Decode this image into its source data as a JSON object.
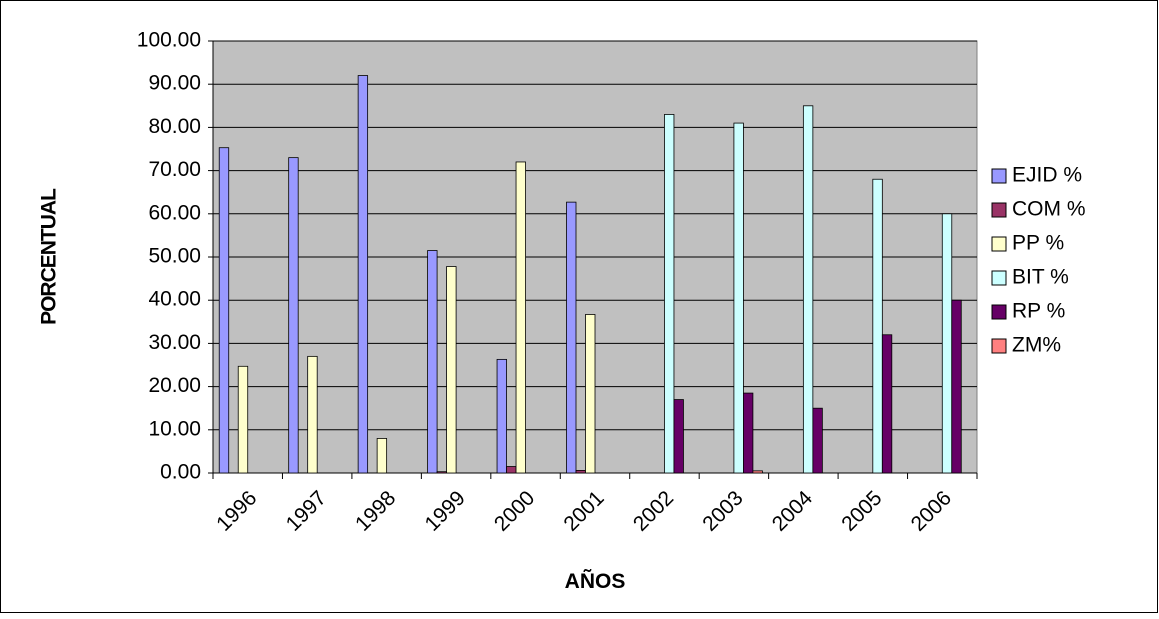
{
  "chart_data": {
    "type": "bar",
    "ylabel": "PORCENTUAL",
    "xlabel": "AÑOS",
    "categories": [
      "1996",
      "1997",
      "1998",
      "1999",
      "2000",
      "2001",
      "2002",
      "2003",
      "2004",
      "2005",
      "2006"
    ],
    "series": [
      {
        "name": "EJID %",
        "color": "#9999ff",
        "values": [
          75.3,
          73,
          92,
          51.5,
          26.3,
          62.7,
          null,
          null,
          null,
          null,
          null
        ]
      },
      {
        "name": "COM %",
        "color": "#993366",
        "values": [
          null,
          null,
          null,
          0.3,
          1.5,
          0.6,
          null,
          null,
          null,
          null,
          null
        ]
      },
      {
        "name": "PP %",
        "color": "#ffffcc",
        "values": [
          24.7,
          27,
          8,
          47.8,
          72,
          36.7,
          null,
          null,
          null,
          null,
          null
        ]
      },
      {
        "name": "BIT %",
        "color": "#ccffff",
        "values": [
          null,
          null,
          null,
          null,
          null,
          null,
          83,
          81,
          85,
          68,
          60
        ]
      },
      {
        "name": "RP %",
        "color": "#660066",
        "values": [
          null,
          null,
          null,
          null,
          null,
          null,
          17,
          18.5,
          15,
          32,
          40
        ]
      },
      {
        "name": "ZM%",
        "color": "#ff8080",
        "values": [
          null,
          null,
          null,
          null,
          null,
          null,
          null,
          0.5,
          null,
          null,
          null
        ]
      }
    ],
    "ylim": [
      0,
      100
    ],
    "yticks": [
      {
        "value": 0,
        "label": "0.00"
      },
      {
        "value": 10,
        "label": "10.00"
      },
      {
        "value": 20,
        "label": "20.00"
      },
      {
        "value": 30,
        "label": "30.00"
      },
      {
        "value": 40,
        "label": "40.00"
      },
      {
        "value": 50,
        "label": "50.00"
      },
      {
        "value": 60,
        "label": "60.00"
      },
      {
        "value": 70,
        "label": "70.00"
      },
      {
        "value": 80,
        "label": "80.00"
      },
      {
        "value": 90,
        "label": "90.00"
      },
      {
        "value": 100,
        "label": "100.00"
      }
    ],
    "grid": true,
    "legend": "right",
    "plot_background": "#c0c0c0"
  }
}
